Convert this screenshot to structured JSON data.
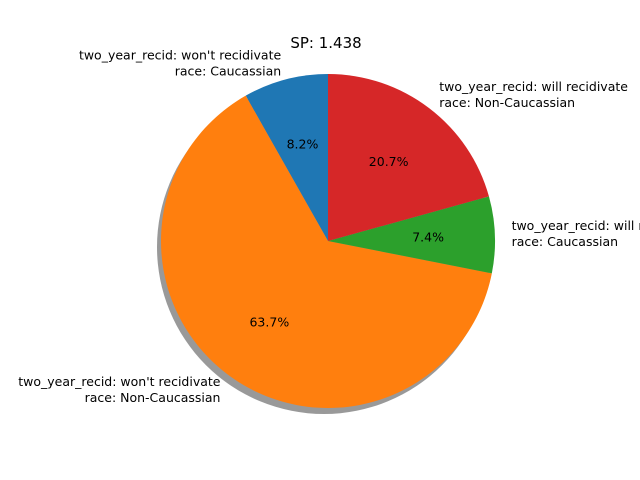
{
  "chart_data": {
    "type": "pie",
    "title": "SP: 1.438",
    "start_angle_deg": 90,
    "direction": "counterclockwise",
    "shadow": true,
    "slices": [
      {
        "label_line1": "two_year_recid: won't recidivate",
        "label_line2": "race: Caucassian",
        "value": 8.2,
        "pct_label": "8.2%",
        "color": "#1f77b4"
      },
      {
        "label_line1": "two_year_recid: won't recidivate",
        "label_line2": "race: Non-Caucassian",
        "value": 63.7,
        "pct_label": "63.7%",
        "color": "#ff7f0e"
      },
      {
        "label_line1": "two_year_recid: will recidivate",
        "label_line2": "race: Caucassian",
        "value": 7.4,
        "pct_label": "7.4%",
        "color": "#2ca02c"
      },
      {
        "label_line1": "two_year_recid: will recidivate",
        "label_line2": "race: Non-Caucassian",
        "value": 20.7,
        "pct_label": "20.7%",
        "color": "#d62728"
      }
    ]
  }
}
